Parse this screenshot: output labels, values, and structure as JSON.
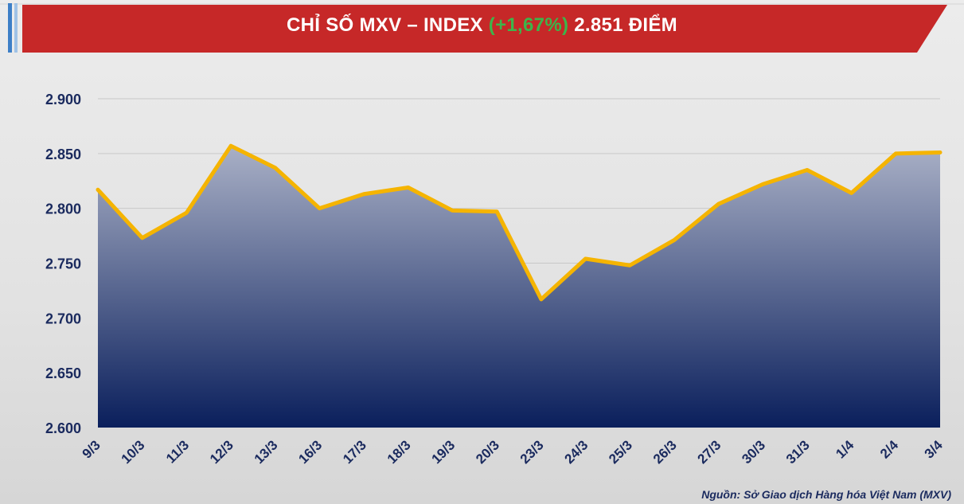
{
  "header": {
    "title_prefix": "CHỈ SỐ MXV – INDEX",
    "change": "(+1,67%)",
    "title_suffix": "2.851 ĐIỂM"
  },
  "source_note": "Nguồn: Sở Giao dịch Hàng hóa Việt Nam (MXV)",
  "colors": {
    "banner": "#c62828",
    "change": "#3db54a",
    "line": "#f5b400",
    "area_top": "#a9b0c6",
    "area_bottom": "#0a1f5c",
    "axis_text": "#1a2a5e"
  },
  "chart_data": {
    "type": "area",
    "categories": [
      "9/3",
      "10/3",
      "11/3",
      "12/3",
      "13/3",
      "16/3",
      "17/3",
      "18/3",
      "19/3",
      "20/3",
      "23/3",
      "24/3",
      "25/3",
      "26/3",
      "27/3",
      "30/3",
      "31/3",
      "1/4",
      "2/4",
      "3/4"
    ],
    "values": [
      2817,
      2773,
      2796,
      2857,
      2837,
      2800,
      2813,
      2819,
      2798,
      2797,
      2717,
      2754,
      2748,
      2771,
      2804,
      2822,
      2835,
      2814,
      2850,
      2851
    ],
    "ylim": [
      2600,
      2900
    ],
    "yticks": [
      2600,
      2650,
      2700,
      2750,
      2800,
      2850,
      2900
    ],
    "ytick_labels": [
      "2.600",
      "2.650",
      "2.700",
      "2.750",
      "2.800",
      "2.850",
      "2.900"
    ],
    "grid": true,
    "legend": "none"
  }
}
